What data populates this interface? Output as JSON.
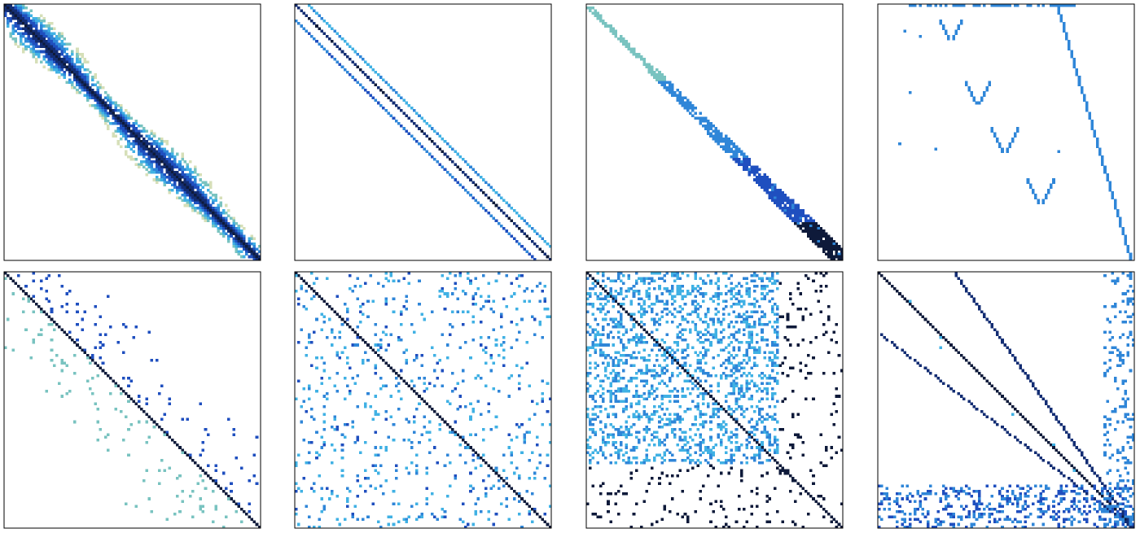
{
  "figure": {
    "rows": 2,
    "cols": 4
  },
  "colors": {
    "background": "#ffffff",
    "frame": "#000000",
    "level_colors": [
      "#d6dfb8",
      "#79c3c0",
      "#40b1e4",
      "#2f86d8",
      "#1f4fbf",
      "#132d73",
      "#0e1a3a"
    ]
  },
  "chart_data": [
    {
      "type": "heatmap",
      "matrix_size": 1,
      "pattern": "diffuse-main-band",
      "colorscale": "density",
      "grid": false,
      "legend": "none"
    },
    {
      "type": "heatmap",
      "matrix_size": 1,
      "pattern": "three-parallel-diagonals",
      "grid": false,
      "legend": "none"
    },
    {
      "type": "heatmap",
      "matrix_size": 1,
      "pattern": "diagonal-band-with-block-tail",
      "grid": false,
      "legend": "none"
    },
    {
      "type": "heatmap",
      "matrix_size": 1,
      "pattern": "v-shaped-off-diagonal-blocks",
      "grid": false,
      "legend": "none"
    },
    {
      "type": "heatmap",
      "matrix_size": 1,
      "pattern": "lower-and-upper-triangular-scatter",
      "grid": false,
      "legend": "none"
    },
    {
      "type": "heatmap",
      "matrix_size": 1,
      "pattern": "scattered-blocks-with-diagonal",
      "grid": false,
      "legend": "none"
    },
    {
      "type": "heatmap",
      "matrix_size": 1,
      "pattern": "dense-blocks-with-diagonal-and-bands",
      "grid": false,
      "legend": "none"
    },
    {
      "type": "heatmap",
      "matrix_size": 1,
      "pattern": "diagonal-with-curved-bands-and-arrow",
      "grid": false,
      "legend": "none"
    }
  ]
}
